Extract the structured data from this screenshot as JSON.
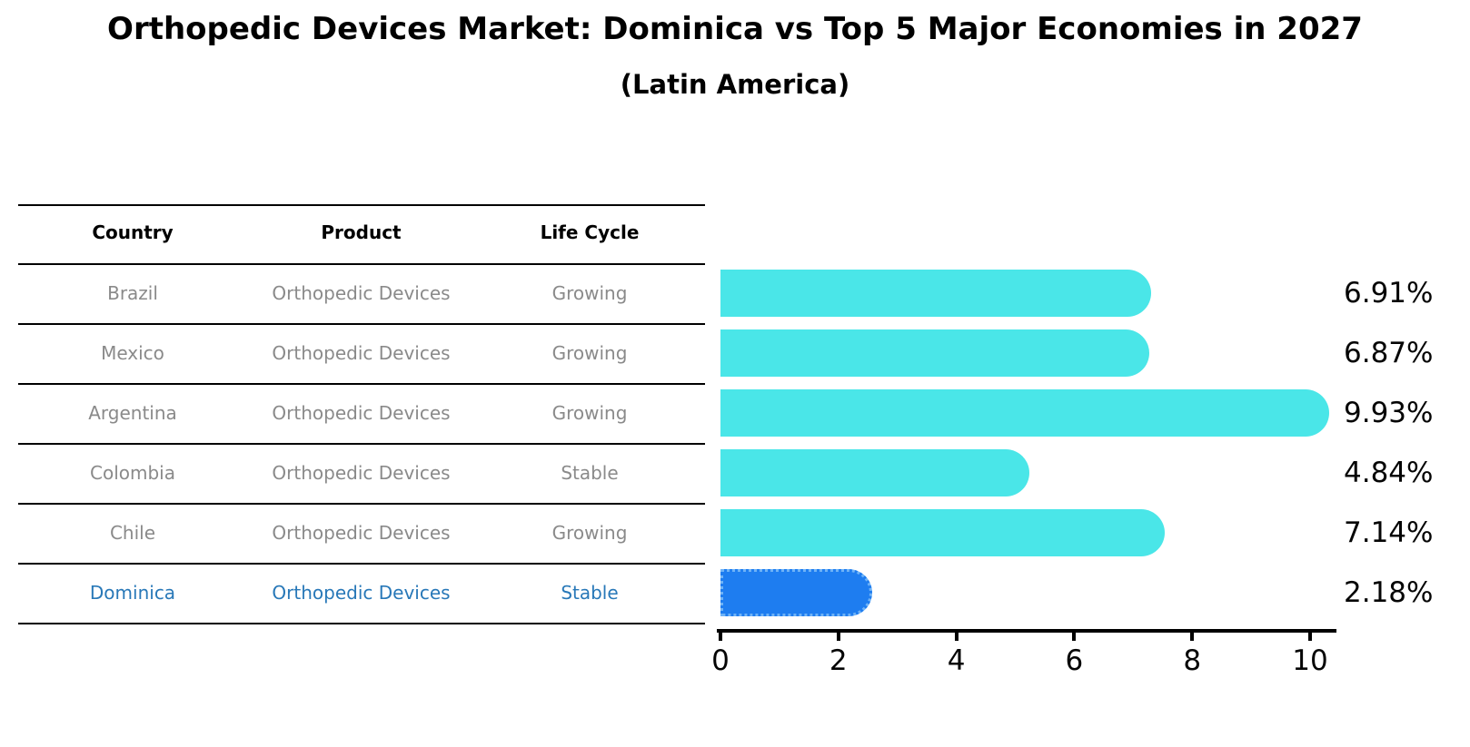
{
  "title": "Orthopedic Devices Market: Dominica vs Top 5 Major Economies in 2027",
  "subtitle": "(Latin America)",
  "table": {
    "columns": [
      "Country",
      "Product",
      "Life Cycle"
    ],
    "rows": [
      [
        "Brazil",
        "Orthopedic Devices",
        "Growing"
      ],
      [
        "Mexico",
        "Orthopedic Devices",
        "Growing"
      ],
      [
        "Argentina",
        "Orthopedic Devices",
        "Growing"
      ],
      [
        "Colombia",
        "Orthopedic Devices",
        "Stable"
      ],
      [
        "Chile",
        "Orthopedic Devices",
        "Growing"
      ],
      [
        "Dominica",
        "Orthopedic Devices",
        "Stable"
      ]
    ],
    "highlight_row_index": 5
  },
  "chart_data": {
    "type": "bar",
    "orientation": "horizontal",
    "categories": [
      "Brazil",
      "Mexico",
      "Argentina",
      "Colombia",
      "Chile",
      "Dominica"
    ],
    "values": [
      6.91,
      6.87,
      9.93,
      4.84,
      7.14,
      2.18
    ],
    "value_labels": [
      "6.91%",
      "6.87%",
      "9.93%",
      "4.84%",
      "7.14%",
      "2.18%"
    ],
    "highlight_index": 5,
    "x_ticks": [
      "0",
      "2",
      "4",
      "6",
      "8",
      "10"
    ],
    "x_tick_values": [
      0,
      2,
      4,
      6,
      8,
      10
    ],
    "xlim": [
      0,
      10.4
    ],
    "grid": false,
    "legend": "none",
    "title": "Orthopedic Devices Market: Dominica vs Top 5 Major Economies in 2027",
    "subtitle": "(Latin America)",
    "xlabel": "",
    "ylabel": ""
  },
  "colors": {
    "bar_default": "#4AE6E8",
    "bar_highlight": "#1E7DF0",
    "bar_highlight_dotted_edge": "#6FB3F7",
    "row_text": "#8A8A8A",
    "highlight_text": "#2878B8",
    "header_text": "#000000",
    "axis": "#000000"
  }
}
